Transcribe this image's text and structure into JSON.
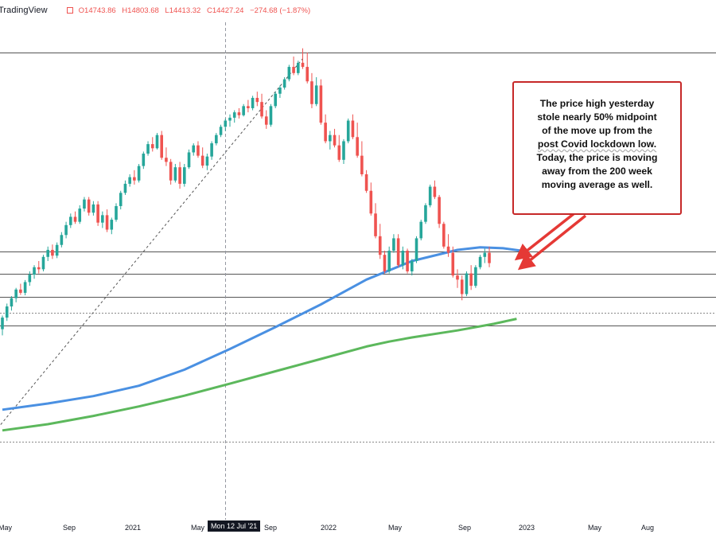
{
  "header": {
    "brand": "TradingView",
    "ohlc": {
      "open": "O14743.86",
      "high": "H14803.68",
      "low": "L14413.32",
      "close": "C14427.24",
      "change": "−274.68 (−1.87%)"
    },
    "flag_icon": "flag-icon",
    "change_color": "#ef5350"
  },
  "annotation": {
    "lines": [
      "The price high yesterday",
      "stole nearly 50% midpoint",
      "of the move up from the",
      "post Covid lockdown low.",
      "Today, the  price is moving",
      "away from the 200 week",
      "moving average as well."
    ],
    "border_color": "#c62828",
    "arrow_color": "#e53935"
  },
  "crosshair_label": "Mon 12 Jul '21",
  "chart_data": {
    "type": "candlestick",
    "title": "",
    "timeframe": "weekly",
    "x_ticks": [
      "May",
      "Sep",
      "2021",
      "May",
      "Sep",
      "2022",
      "May",
      "Sep",
      "2023",
      "May",
      "Aug"
    ],
    "series": [
      {
        "name": "",
        "kind": "candles",
        "up_color": "#26a69a",
        "down_color": "#ef5350",
        "ohlc": [
          [
            9600,
            9930,
            9450,
            9880
          ],
          [
            9880,
            10220,
            9800,
            10150
          ],
          [
            10150,
            10400,
            10050,
            10350
          ],
          [
            10350,
            10600,
            10250,
            10560
          ],
          [
            10560,
            10700,
            10430,
            10480
          ],
          [
            10480,
            10790,
            10420,
            10740
          ],
          [
            10740,
            11000,
            10650,
            10920
          ],
          [
            10920,
            11150,
            10820,
            11100
          ],
          [
            11100,
            11250,
            10950,
            11050
          ],
          [
            11050,
            11400,
            11000,
            11350
          ],
          [
            11350,
            11600,
            11250,
            11520
          ],
          [
            11520,
            11650,
            11300,
            11380
          ],
          [
            11380,
            11700,
            11320,
            11640
          ],
          [
            11640,
            11950,
            11580,
            11880
          ],
          [
            11880,
            12200,
            11800,
            12120
          ],
          [
            12120,
            12400,
            12050,
            12320
          ],
          [
            12320,
            12450,
            12150,
            12200
          ],
          [
            12200,
            12600,
            12150,
            12520
          ],
          [
            12520,
            12800,
            12450,
            12740
          ],
          [
            12740,
            12800,
            12350,
            12420
          ],
          [
            12420,
            12700,
            12350,
            12620
          ],
          [
            12620,
            12700,
            12100,
            12180
          ],
          [
            12180,
            12450,
            12050,
            12360
          ],
          [
            12360,
            12500,
            11950,
            12010
          ],
          [
            12010,
            12300,
            11900,
            12250
          ],
          [
            12250,
            12650,
            12200,
            12580
          ],
          [
            12580,
            12950,
            12500,
            12900
          ],
          [
            12900,
            13200,
            12850,
            13120
          ],
          [
            13120,
            13350,
            13050,
            13280
          ],
          [
            13280,
            13450,
            13100,
            13200
          ],
          [
            13200,
            13600,
            13150,
            13550
          ],
          [
            13550,
            13900,
            13480,
            13850
          ],
          [
            13850,
            14150,
            13800,
            14080
          ],
          [
            14080,
            14250,
            13900,
            13980
          ],
          [
            13980,
            14350,
            13950,
            14300
          ],
          [
            14300,
            14400,
            13700,
            13750
          ],
          [
            13750,
            14000,
            13550,
            13650
          ],
          [
            13650,
            13720,
            13100,
            13200
          ],
          [
            13200,
            13600,
            13150,
            13520
          ],
          [
            13520,
            13650,
            13000,
            13120
          ],
          [
            13120,
            13600,
            13050,
            13520
          ],
          [
            13520,
            13950,
            13480,
            13880
          ],
          [
            13880,
            14100,
            13800,
            14050
          ],
          [
            14050,
            14150,
            13750,
            13800
          ],
          [
            13800,
            14000,
            13500,
            13560
          ],
          [
            13560,
            13850,
            13450,
            13780
          ],
          [
            13780,
            14150,
            13700,
            14100
          ],
          [
            14100,
            14350,
            14050,
            14300
          ],
          [
            14300,
            14550,
            14250,
            14500
          ],
          [
            14500,
            14700,
            14400,
            14650
          ],
          [
            14650,
            14800,
            14500,
            14720
          ],
          [
            14720,
            14900,
            14600,
            14850
          ],
          [
            14850,
            14950,
            14700,
            14780
          ],
          [
            14780,
            15050,
            14750,
            15000
          ],
          [
            15000,
            15150,
            14850,
            14950
          ],
          [
            14950,
            15250,
            14900,
            15200
          ],
          [
            15200,
            15350,
            15000,
            15100
          ],
          [
            15100,
            15300,
            14700,
            14750
          ],
          [
            14750,
            14900,
            14450,
            14550
          ],
          [
            14550,
            15050,
            14500,
            15000
          ],
          [
            15000,
            15350,
            14950,
            15300
          ],
          [
            15300,
            15500,
            15200,
            15450
          ],
          [
            15450,
            15700,
            15400,
            15650
          ],
          [
            15650,
            16000,
            15600,
            15950
          ],
          [
            15950,
            16200,
            15750,
            15800
          ],
          [
            15800,
            16100,
            15750,
            16050
          ],
          [
            16050,
            16400,
            15900,
            15950
          ],
          [
            15950,
            16300,
            15550,
            15600
          ],
          [
            15600,
            15800,
            14950,
            15050
          ],
          [
            15050,
            15700,
            15000,
            15500
          ],
          [
            15500,
            15650,
            14550,
            14600
          ],
          [
            14600,
            14800,
            14100,
            14150
          ],
          [
            14150,
            14400,
            13950,
            14300
          ],
          [
            14300,
            14450,
            14000,
            14050
          ],
          [
            14050,
            14300,
            13650,
            13700
          ],
          [
            13700,
            14200,
            13600,
            14150
          ],
          [
            14150,
            14700,
            14100,
            14650
          ],
          [
            14650,
            14800,
            14200,
            14250
          ],
          [
            14250,
            14600,
            13750,
            13800
          ],
          [
            13800,
            14150,
            13300,
            13350
          ],
          [
            13350,
            13450,
            12900,
            12950
          ],
          [
            12950,
            13150,
            12350,
            12400
          ],
          [
            12400,
            12650,
            11800,
            11850
          ],
          [
            11850,
            12150,
            11300,
            11400
          ],
          [
            11400,
            11500,
            10950,
            11000
          ],
          [
            11000,
            11600,
            10950,
            11500
          ],
          [
            11500,
            11900,
            11450,
            11800
          ],
          [
            11800,
            11900,
            11100,
            11150
          ],
          [
            11150,
            11600,
            11050,
            11500
          ],
          [
            11500,
            11550,
            10950,
            11000
          ],
          [
            11000,
            11300,
            10900,
            11250
          ],
          [
            11250,
            11850,
            11200,
            11800
          ],
          [
            11800,
            12250,
            11750,
            12200
          ],
          [
            12200,
            12650,
            12150,
            12600
          ],
          [
            12600,
            13100,
            12550,
            13050
          ],
          [
            13050,
            13200,
            12750,
            12800
          ],
          [
            12800,
            12850,
            12050,
            12150
          ],
          [
            12150,
            12200,
            11550,
            11600
          ],
          [
            11600,
            11900,
            11350,
            11450
          ],
          [
            11450,
            11600,
            10850,
            10900
          ],
          [
            10900,
            11050,
            10600,
            10800
          ],
          [
            10800,
            10900,
            10300,
            10450
          ],
          [
            10450,
            11000,
            10400,
            10950
          ],
          [
            10950,
            11150,
            10550,
            10650
          ],
          [
            10650,
            11150,
            10600,
            11100
          ],
          [
            11100,
            11400,
            11050,
            11350
          ],
          [
            11350,
            11550,
            11200,
            11450
          ],
          [
            11450,
            11600,
            11100,
            11200
          ]
        ]
      },
      {
        "name": "",
        "kind": "line",
        "color": "#4a90e2",
        "points": [
          [
            0,
            7650
          ],
          [
            10,
            7800
          ],
          [
            20,
            7980
          ],
          [
            30,
            8230
          ],
          [
            40,
            8620
          ],
          [
            50,
            9120
          ],
          [
            60,
            9650
          ],
          [
            70,
            10200
          ],
          [
            80,
            10800
          ],
          [
            90,
            11250
          ],
          [
            100,
            11520
          ],
          [
            105,
            11580
          ],
          [
            110,
            11560
          ],
          [
            114,
            11500
          ]
        ]
      },
      {
        "name": "",
        "kind": "line",
        "color": "#5cb85c",
        "points": [
          [
            0,
            7150
          ],
          [
            10,
            7300
          ],
          [
            20,
            7500
          ],
          [
            30,
            7730
          ],
          [
            40,
            7990
          ],
          [
            50,
            8280
          ],
          [
            60,
            8580
          ],
          [
            70,
            8880
          ],
          [
            80,
            9180
          ],
          [
            85,
            9300
          ],
          [
            90,
            9400
          ],
          [
            100,
            9570
          ],
          [
            108,
            9730
          ],
          [
            113,
            9850
          ]
        ]
      }
    ],
    "horizontal_levels": [
      {
        "value": 16290,
        "style": "solid"
      },
      {
        "value": 11480,
        "style": "solid"
      },
      {
        "value": 10950,
        "style": "solid"
      },
      {
        "value": 10390,
        "style": "solid"
      },
      {
        "value": 9995,
        "style": "dotted"
      },
      {
        "value": 9680,
        "style": "solid"
      },
      {
        "value": 6870,
        "style": "dotted"
      }
    ],
    "trendline": {
      "from": [
        0,
        7200
      ],
      "to": [
        66,
        16150
      ],
      "style": "dashed"
    },
    "crosshair_x": 49,
    "grid": false
  }
}
